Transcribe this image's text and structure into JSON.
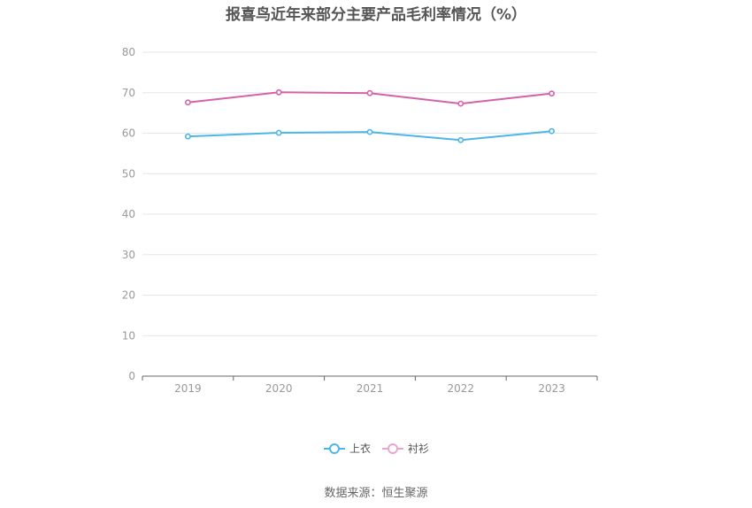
{
  "chart_data": {
    "type": "line",
    "title": "报喜鸟近年来部分主要产品毛利率情况（%）",
    "categories": [
      "2019",
      "2020",
      "2021",
      "2022",
      "2023"
    ],
    "series": [
      {
        "name": "上衣",
        "color": "#4db6e8",
        "values": [
          59.2,
          60.1,
          60.3,
          58.3,
          60.5
        ]
      },
      {
        "name": "衬衫",
        "color": "#d462a8",
        "values": [
          67.6,
          70.1,
          69.9,
          67.3,
          69.8
        ]
      }
    ],
    "y_ticks": [
      "0",
      "10",
      "20",
      "30",
      "40",
      "50",
      "60",
      "70",
      "80"
    ],
    "ylim": [
      0,
      80
    ],
    "grid": true,
    "legend_position": "bottom-center",
    "source": "数据来源：恒生聚源"
  }
}
